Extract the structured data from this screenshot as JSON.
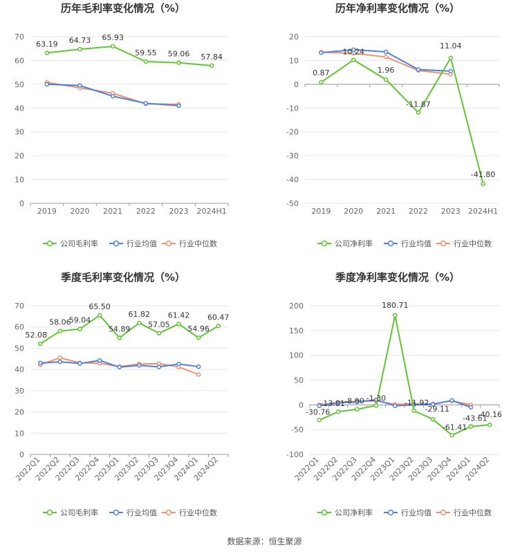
{
  "colors": {
    "company": "#5ec530",
    "avg": "#4f7fe0",
    "median": "#f0906a",
    "grid": "#e6e6e6",
    "axis": "#999999"
  },
  "legend": {
    "gross": "公司毛利率",
    "net": "公司净利率",
    "avg": "行业均值",
    "median": "行业中位数"
  },
  "source": "数据来源：恒生聚源",
  "chart_data": [
    {
      "type": "line",
      "title": "历年毛利率变化情况（%）",
      "categories": [
        "2019",
        "2020",
        "2021",
        "2022",
        "2023",
        "2024H1"
      ],
      "ylim": [
        0,
        70
      ],
      "yticks": [
        0,
        10,
        20,
        30,
        40,
        50,
        60,
        70
      ],
      "series": [
        {
          "name": "公司毛利率",
          "values": [
            63.19,
            64.73,
            65.93,
            59.55,
            59.06,
            57.84
          ],
          "labels": [
            "63.19",
            "64.73",
            "65.93",
            "59.55",
            "59.06",
            "57.84"
          ]
        },
        {
          "name": "行业均值",
          "values": [
            50.0,
            49.5,
            45.0,
            42.0,
            41.0,
            null
          ]
        },
        {
          "name": "行业中位数",
          "values": [
            50.8,
            48.5,
            46.2,
            41.8,
            41.6,
            null
          ]
        }
      ]
    },
    {
      "type": "line",
      "title": "历年净利率变化情况（%）",
      "categories": [
        "2019",
        "2020",
        "2021",
        "2022",
        "2023",
        "2024H1"
      ],
      "ylim": [
        -50,
        20
      ],
      "yticks": [
        -50,
        -40,
        -30,
        -20,
        -10,
        0,
        10,
        20
      ],
      "series": [
        {
          "name": "公司净利率",
          "values": [
            0.87,
            10.24,
            1.96,
            -11.87,
            11.04,
            -41.8
          ],
          "labels": [
            "0.87",
            "10.24",
            "1.96",
            "-11.87",
            "11.04",
            "-41.80"
          ]
        },
        {
          "name": "行业均值",
          "values": [
            13.3,
            14.5,
            13.6,
            6.2,
            5.5,
            null
          ]
        },
        {
          "name": "行业中位数",
          "values": [
            13.5,
            13.0,
            11.5,
            5.8,
            4.2,
            null
          ]
        }
      ]
    },
    {
      "type": "line",
      "title": "季度毛利率变化情况（%）",
      "categories": [
        "2022Q1",
        "2022Q2",
        "2022Q3",
        "2022Q4",
        "2023Q1",
        "2023Q2",
        "2023Q3",
        "2023Q4",
        "2024Q1",
        "2024Q2"
      ],
      "ylim": [
        0,
        70
      ],
      "yticks": [
        0,
        10,
        20,
        30,
        40,
        50,
        60,
        70
      ],
      "series": [
        {
          "name": "公司毛利率",
          "values": [
            52.08,
            58.06,
            59.04,
            65.5,
            54.89,
            61.82,
            57.05,
            61.42,
            54.96,
            60.47
          ],
          "labels": [
            "52.08",
            "58.06",
            "59.04",
            "65.50",
            "54.89",
            "61.82",
            "57.05",
            "61.42",
            "54.96",
            "60.47"
          ]
        },
        {
          "name": "行业均值",
          "values": [
            43.0,
            43.6,
            42.8,
            44.2,
            41.1,
            41.9,
            41.2,
            42.6,
            41.3,
            null
          ]
        },
        {
          "name": "行业中位数",
          "values": [
            42.2,
            45.5,
            43.1,
            42.9,
            41.3,
            42.6,
            42.7,
            41.2,
            37.6,
            null
          ]
        }
      ]
    },
    {
      "type": "line",
      "title": "季度净利率变化情况（%）",
      "categories": [
        "2022Q1",
        "2022Q2",
        "2022Q3",
        "2022Q4",
        "2023Q1",
        "2023Q2",
        "2023Q3",
        "2023Q4",
        "2024Q1",
        "2024Q2"
      ],
      "ylim": [
        -100,
        200
      ],
      "yticks": [
        -100,
        -50,
        0,
        50,
        100,
        150,
        200
      ],
      "series": [
        {
          "name": "公司净利率",
          "values": [
            -30.76,
            -13.81,
            -8.9,
            -1.3,
            180.71,
            -11.92,
            -29.11,
            -61.41,
            -43.61,
            -40.16
          ],
          "labels": [
            "-30.76",
            "-13.81",
            "-8.90",
            "-1.30",
            "180.71",
            "-11.92",
            "-29.11",
            "-61.41",
            "-43.61",
            "-40.16"
          ]
        },
        {
          "name": "行业均值",
          "values": [
            -2.0,
            4.0,
            6.0,
            10.0,
            -2.0,
            0.0,
            1.0,
            9.0,
            -5.0,
            null
          ]
        },
        {
          "name": "行业中位数",
          "values": [
            0.0,
            5.0,
            7.0,
            8.0,
            1.0,
            2.0,
            2.0,
            8.0,
            0.0,
            null
          ]
        }
      ]
    }
  ]
}
